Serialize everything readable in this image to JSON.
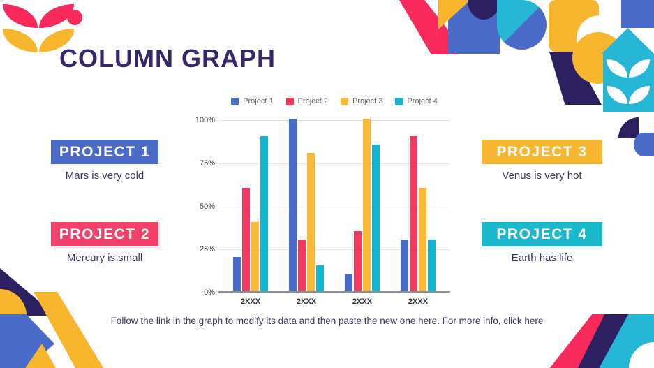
{
  "slide": {
    "title": "COLUMN GRAPH"
  },
  "palette": {
    "navy": "#2D2060",
    "blue": "#4B6BC8",
    "pink": "#F8295B",
    "yellow": "#F8B62E",
    "cyan": "#27B7D6"
  },
  "projects": [
    {
      "label": "PROJECT 1",
      "description": "Mars is very cold",
      "color": "#4B6BC8"
    },
    {
      "label": "PROJECT 2",
      "description": "Mercury is small",
      "color": "#F4416B"
    },
    {
      "label": "PROJECT 3",
      "description": "Venus is very hot",
      "color": "#F7B731"
    },
    {
      "label": "PROJECT 4",
      "description": "Earth has life",
      "color": "#1CB9CE"
    }
  ],
  "chart_data": {
    "type": "bar",
    "title": "",
    "categories": [
      "2XXX",
      "2XXX",
      "2XXX",
      "2XXX"
    ],
    "series": [
      {
        "name": "Project 1",
        "color": "#4B6BC8",
        "values": [
          20,
          100,
          10,
          30
        ]
      },
      {
        "name": "Project 2",
        "color": "#F3395F",
        "values": [
          60,
          30,
          35,
          90
        ]
      },
      {
        "name": "Project 3",
        "color": "#F9B934",
        "values": [
          40,
          80,
          100,
          60
        ]
      },
      {
        "name": "Project 4",
        "color": "#10B5CE",
        "values": [
          90,
          15,
          85,
          30
        ]
      }
    ],
    "xlabel": "",
    "ylabel": "",
    "ylim": [
      0,
      100
    ],
    "y_ticks": [
      "100%",
      "75%",
      "50%",
      "25%",
      "0%"
    ],
    "grid": true,
    "legend_position": "top"
  },
  "footer": {
    "text": "Follow the link in the graph to modify its data and then paste the new one here. For more info, ",
    "link_text": "click here"
  }
}
